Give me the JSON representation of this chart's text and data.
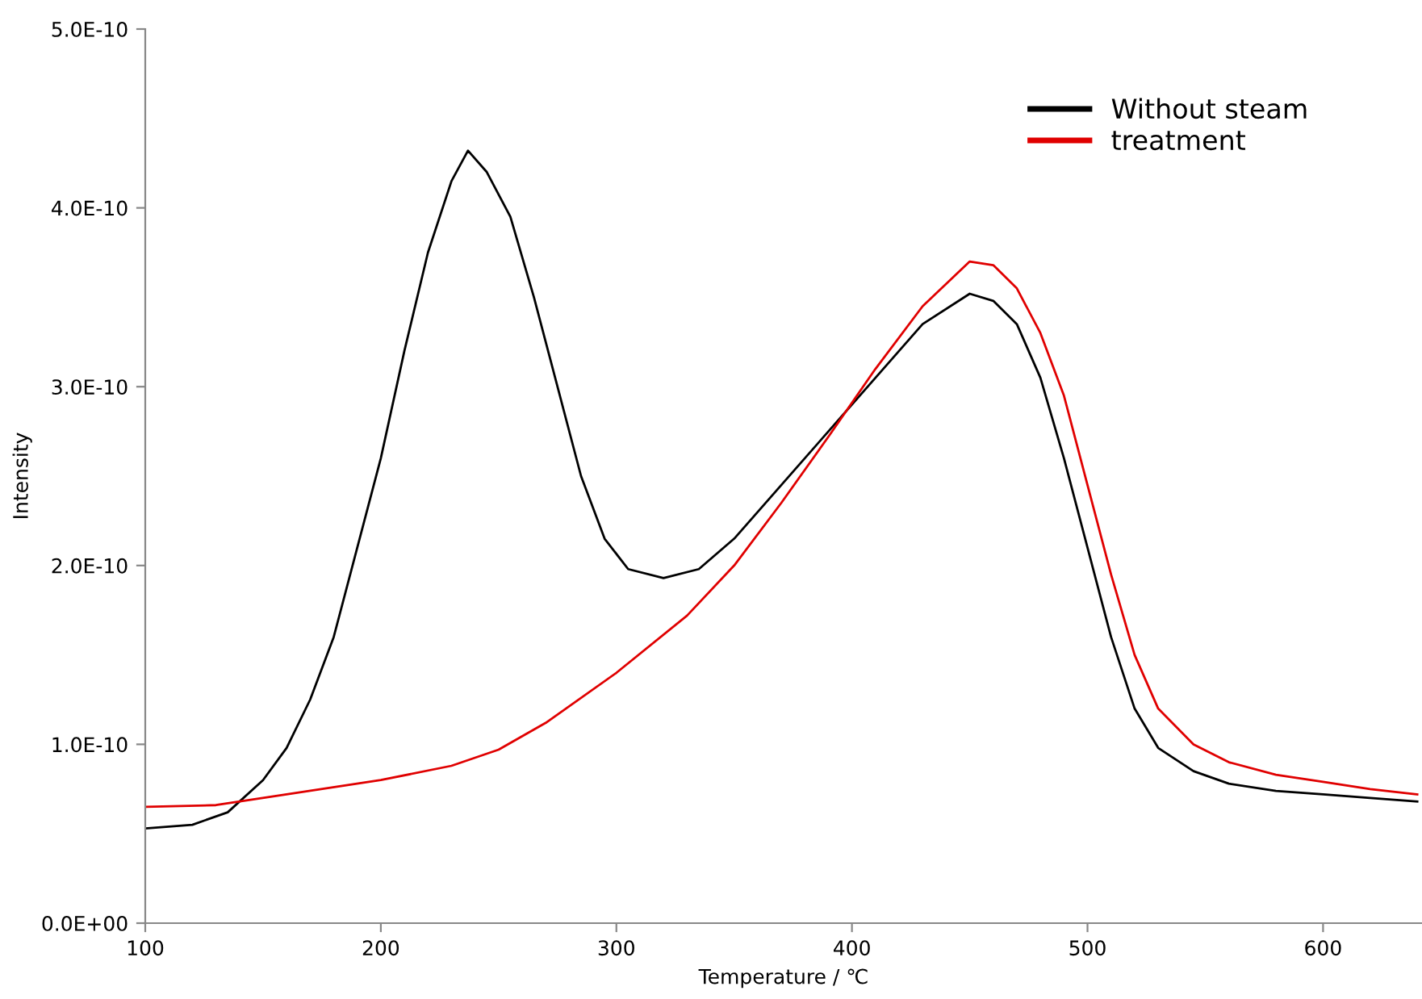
{
  "chart_data": {
    "type": "line",
    "xlabel": "Temperature / ℃",
    "ylabel": "Intensity",
    "xlim": [
      100,
      642
    ],
    "xticks": [
      100,
      200,
      300,
      400,
      500,
      600
    ],
    "ylim": [
      0,
      5e-10
    ],
    "yticks": [
      {
        "value": 0,
        "label": "0.0E+00"
      },
      {
        "value": 1e-10,
        "label": "1.0E-10"
      },
      {
        "value": 2e-10,
        "label": "2.0E-10"
      },
      {
        "value": 3e-10,
        "label": "3.0E-10"
      },
      {
        "value": 4e-10,
        "label": "4.0E-10"
      },
      {
        "value": 5e-10,
        "label": "5.0E-10"
      }
    ],
    "grid": false,
    "legend": "top right",
    "marker": "none",
    "line_style": "solid",
    "series": [
      {
        "name": "Without steam",
        "color": "#000000",
        "x": [
          100,
          120,
          135,
          150,
          160,
          170,
          180,
          190,
          200,
          210,
          220,
          230,
          237,
          245,
          255,
          265,
          275,
          285,
          295,
          305,
          320,
          335,
          350,
          370,
          390,
          410,
          430,
          450,
          460,
          470,
          480,
          490,
          500,
          510,
          520,
          530,
          545,
          560,
          580,
          600,
          620,
          640
        ],
        "values": [
          5.3e-11,
          5.5e-11,
          6.2e-11,
          8e-11,
          9.8e-11,
          1.25e-10,
          1.6e-10,
          2.1e-10,
          2.6e-10,
          3.2e-10,
          3.75e-10,
          4.15e-10,
          4.32e-10,
          4.2e-10,
          3.95e-10,
          3.5e-10,
          3e-10,
          2.5e-10,
          2.15e-10,
          1.98e-10,
          1.93e-10,
          1.98e-10,
          2.15e-10,
          2.45e-10,
          2.75e-10,
          3.05e-10,
          3.35e-10,
          3.52e-10,
          3.48e-10,
          3.35e-10,
          3.05e-10,
          2.6e-10,
          2.1e-10,
          1.6e-10,
          1.2e-10,
          9.8e-11,
          8.5e-11,
          7.8e-11,
          7.4e-11,
          7.2e-11,
          7e-11,
          6.8e-11
        ]
      },
      {
        "name": "treatment",
        "color": "#e00000",
        "x": [
          100,
          130,
          160,
          200,
          230,
          250,
          270,
          300,
          330,
          350,
          370,
          390,
          410,
          430,
          450,
          460,
          470,
          480,
          490,
          500,
          510,
          520,
          530,
          545,
          560,
          580,
          600,
          620,
          640
        ],
        "values": [
          6.5e-11,
          6.6e-11,
          7.2e-11,
          8e-11,
          8.8e-11,
          9.7e-11,
          1.12e-10,
          1.4e-10,
          1.72e-10,
          2e-10,
          2.35e-10,
          2.72e-10,
          3.1e-10,
          3.45e-10,
          3.7e-10,
          3.68e-10,
          3.55e-10,
          3.3e-10,
          2.95e-10,
          2.45e-10,
          1.95e-10,
          1.5e-10,
          1.2e-10,
          1e-10,
          9e-11,
          8.3e-11,
          7.9e-11,
          7.5e-11,
          7.2e-11
        ]
      }
    ]
  }
}
